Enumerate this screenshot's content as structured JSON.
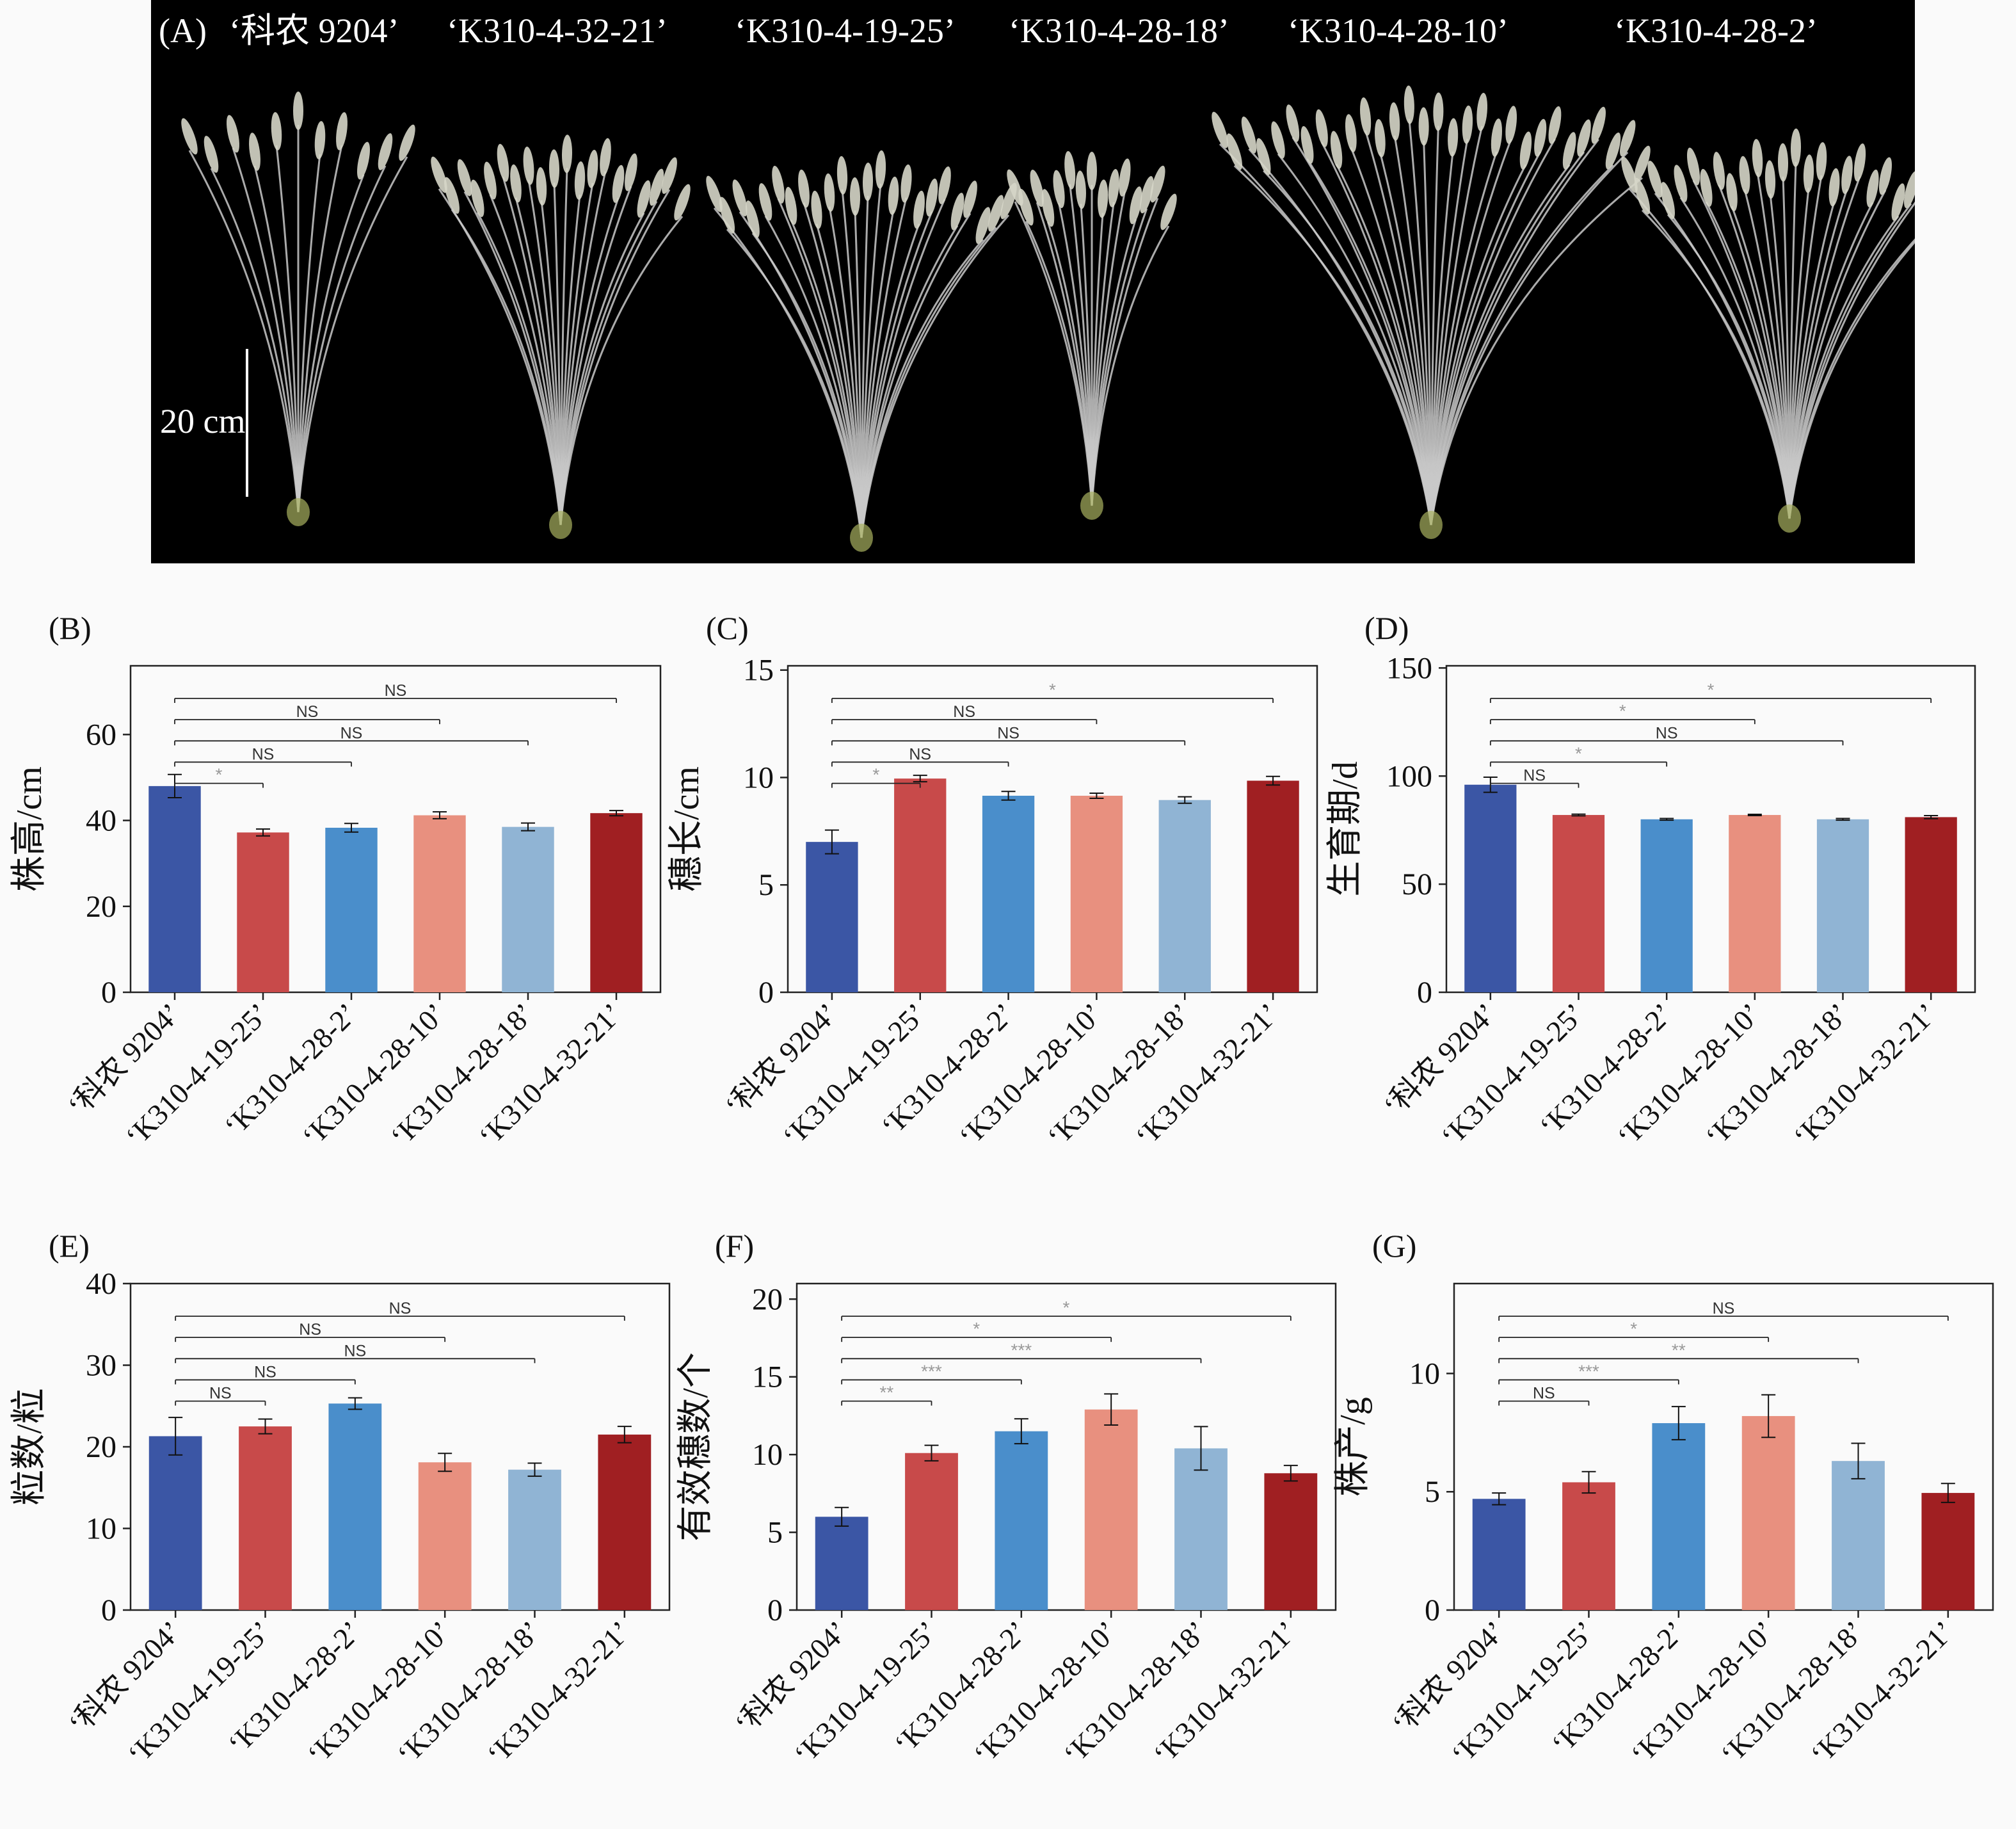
{
  "photo": {
    "label": "(A)",
    "titles": [
      "‘科农 9204’",
      "‘K310-4-32-21’",
      "‘K310-4-19-25’",
      "‘K310-4-28-18’",
      "‘K310-4-28-10’",
      "‘K310-4-28-2’"
    ],
    "scale_bar": "20 cm"
  },
  "colors": [
    "#3b56a5",
    "#c84a4a",
    "#4a8ecb",
    "#e8907f",
    "#90b4d4",
    "#a01f22"
  ],
  "chart_data": [
    {
      "panel": "(B)",
      "type": "bar",
      "ylabel": "株高/cm",
      "ylim": [
        0,
        76
      ],
      "yticks": [
        0,
        20,
        40,
        60
      ],
      "categories": [
        "‘科农 9204’",
        "‘K310-4-19-25’",
        "‘K310-4-28-2’",
        "‘K310-4-28-10’",
        "‘K310-4-28-18’",
        "‘K310-4-32-21’"
      ],
      "values": [
        48,
        37.2,
        38.3,
        41.2,
        38.5,
        41.7
      ],
      "errors": [
        2.7,
        0.8,
        1.0,
        0.8,
        0.9,
        0.6
      ],
      "comparisons": [
        {
          "from": 0,
          "to": 1,
          "label": "*"
        },
        {
          "from": 0,
          "to": 2,
          "label": "NS"
        },
        {
          "from": 0,
          "to": 4,
          "label": "NS"
        },
        {
          "from": 0,
          "to": 3,
          "label": "NS"
        },
        {
          "from": 0,
          "to": 5,
          "label": "NS"
        }
      ]
    },
    {
      "panel": "(C)",
      "type": "bar",
      "ylabel": "穗长/cm",
      "ylim": [
        0,
        15.2
      ],
      "yticks": [
        0,
        5,
        10,
        15
      ],
      "categories": [
        "‘科农 9204’",
        "‘K310-4-19-25’",
        "‘K310-4-28-2’",
        "‘K310-4-28-10’",
        "‘K310-4-28-18’",
        "‘K310-4-32-21’"
      ],
      "values": [
        7.0,
        9.95,
        9.15,
        9.15,
        8.95,
        9.85
      ],
      "errors": [
        0.55,
        0.15,
        0.2,
        0.12,
        0.15,
        0.2
      ],
      "comparisons": [
        {
          "from": 0,
          "to": 1,
          "label": "*"
        },
        {
          "from": 0,
          "to": 2,
          "label": "NS"
        },
        {
          "from": 0,
          "to": 4,
          "label": "NS"
        },
        {
          "from": 0,
          "to": 3,
          "label": "NS"
        },
        {
          "from": 0,
          "to": 5,
          "label": "*"
        }
      ]
    },
    {
      "panel": "(D)",
      "type": "bar",
      "ylabel": "生育期/d",
      "ylim": [
        0,
        151
      ],
      "yticks": [
        0,
        50,
        100,
        150
      ],
      "categories": [
        "‘科农 9204’",
        "‘K310-4-19-25’",
        "‘K310-4-28-2’",
        "‘K310-4-28-10’",
        "‘K310-4-28-18’",
        "‘K310-4-32-21’"
      ],
      "values": [
        96,
        82,
        80,
        82,
        80,
        81
      ],
      "errors": [
        3.5,
        0.4,
        0.4,
        0.3,
        0.4,
        0.7
      ],
      "comparisons": [
        {
          "from": 0,
          "to": 1,
          "label": "NS"
        },
        {
          "from": 0,
          "to": 2,
          "label": "*"
        },
        {
          "from": 0,
          "to": 4,
          "label": "NS"
        },
        {
          "from": 0,
          "to": 3,
          "label": "*"
        },
        {
          "from": 0,
          "to": 5,
          "label": "*"
        }
      ]
    },
    {
      "panel": "(E)",
      "type": "bar",
      "ylabel": "粒数/粒",
      "ylim": [
        0,
        40
      ],
      "yticks": [
        0,
        10,
        20,
        30,
        40
      ],
      "categories": [
        "‘科农 9204’",
        "‘K310-4-19-25’",
        "‘K310-4-28-2’",
        "‘K310-4-28-10’",
        "‘K310-4-28-18’",
        "‘K310-4-32-21’"
      ],
      "values": [
        21.3,
        22.5,
        25.3,
        18.1,
        17.2,
        21.5
      ],
      "errors": [
        2.3,
        0.9,
        0.7,
        1.1,
        0.8,
        1.0
      ],
      "comparisons": [
        {
          "from": 0,
          "to": 1,
          "label": "NS"
        },
        {
          "from": 0,
          "to": 2,
          "label": "NS"
        },
        {
          "from": 0,
          "to": 4,
          "label": "NS"
        },
        {
          "from": 0,
          "to": 3,
          "label": "NS"
        },
        {
          "from": 0,
          "to": 5,
          "label": "NS"
        }
      ]
    },
    {
      "panel": "(F)",
      "type": "bar",
      "ylabel": "有效穗数/个",
      "ylim": [
        0,
        21
      ],
      "yticks": [
        0,
        5,
        10,
        15,
        20
      ],
      "categories": [
        "‘科农 9204’",
        "‘K310-4-19-25’",
        "‘K310-4-28-2’",
        "‘K310-4-28-10’",
        "‘K310-4-28-18’",
        "‘K310-4-32-21’"
      ],
      "values": [
        6.0,
        10.1,
        11.5,
        12.9,
        10.4,
        8.8
      ],
      "errors": [
        0.6,
        0.5,
        0.8,
        1.0,
        1.4,
        0.5
      ],
      "comparisons": [
        {
          "from": 0,
          "to": 1,
          "label": "**"
        },
        {
          "from": 0,
          "to": 2,
          "label": "***"
        },
        {
          "from": 0,
          "to": 4,
          "label": "***"
        },
        {
          "from": 0,
          "to": 3,
          "label": "*"
        },
        {
          "from": 0,
          "to": 5,
          "label": "*"
        }
      ]
    },
    {
      "panel": "(G)",
      "type": "bar",
      "ylabel": "株产/g",
      "ylim": [
        0,
        13.8
      ],
      "yticks": [
        0,
        5,
        10
      ],
      "categories": [
        "‘科农 9204’",
        "‘K310-4-19-25’",
        "‘K310-4-28-2’",
        "‘K310-4-28-10’",
        "‘K310-4-28-18’",
        "‘K310-4-32-21’"
      ],
      "values": [
        4.7,
        5.4,
        7.9,
        8.2,
        6.3,
        4.95
      ],
      "errors": [
        0.25,
        0.45,
        0.7,
        0.9,
        0.75,
        0.4
      ],
      "comparisons": [
        {
          "from": 0,
          "to": 1,
          "label": "NS"
        },
        {
          "from": 0,
          "to": 2,
          "label": "***"
        },
        {
          "from": 0,
          "to": 4,
          "label": "**"
        },
        {
          "from": 0,
          "to": 3,
          "label": "*"
        },
        {
          "from": 0,
          "to": 5,
          "label": "NS"
        }
      ]
    }
  ]
}
